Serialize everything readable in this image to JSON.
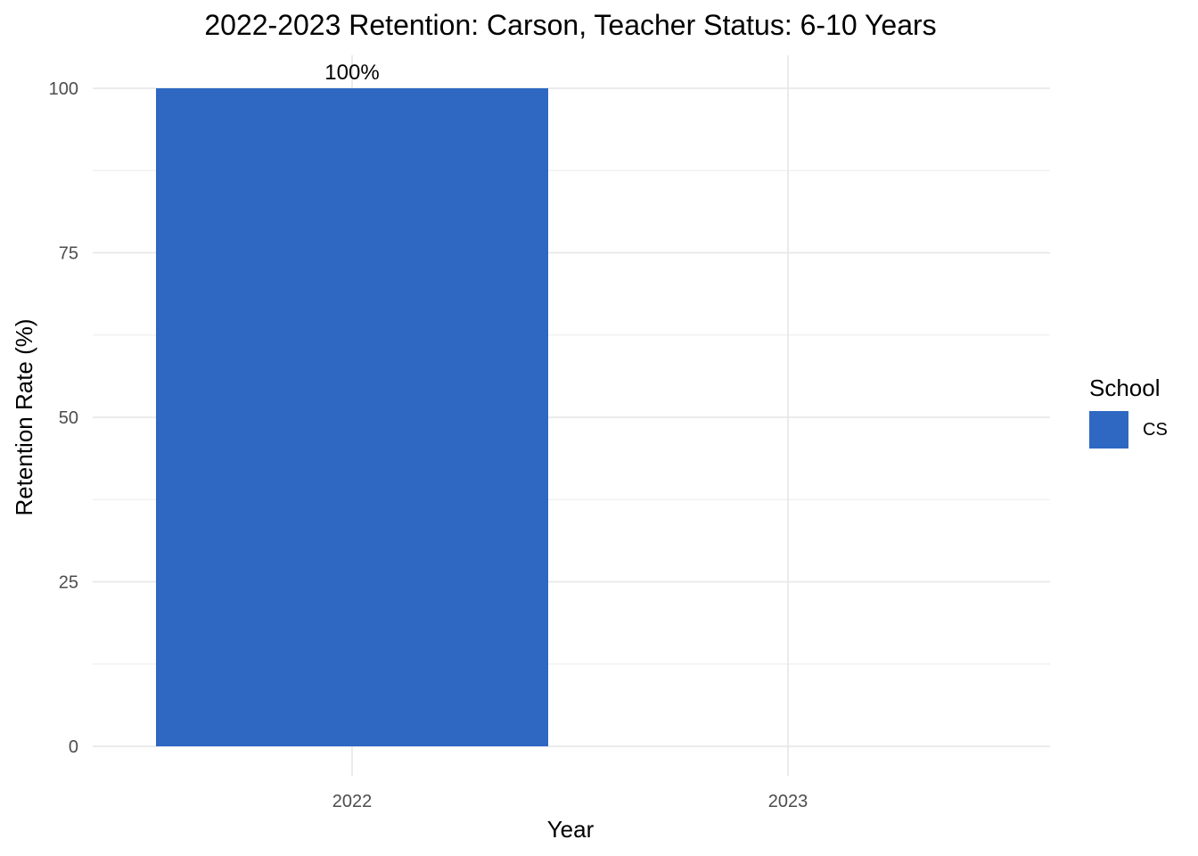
{
  "chart_data": {
    "type": "bar",
    "title": "2022-2023 Retention: Carson, Teacher Status: 6-10 Years",
    "xlabel": "Year",
    "ylabel": "Retention Rate (%)",
    "categories": [
      "2022",
      "2023"
    ],
    "series": [
      {
        "name": "CS",
        "color": "#2E68C2",
        "values": [
          100,
          null
        ]
      }
    ],
    "data_labels": [
      "100%",
      ""
    ],
    "ylim": [
      0,
      100
    ],
    "yticks": [
      0,
      25,
      50,
      75,
      100
    ],
    "grid": true,
    "legend": {
      "title": "School",
      "position": "right"
    }
  }
}
